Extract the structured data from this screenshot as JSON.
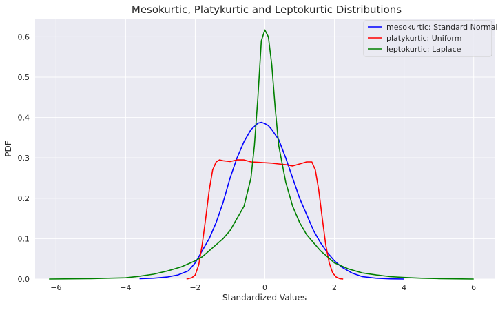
{
  "chart_data": {
    "type": "line",
    "title": "Mesokurtic, Platykurtic and Leptokurtic Distributions",
    "xlabel": "Standardized Values",
    "ylabel": "PDF",
    "xlim": [
      -6.6,
      6.6
    ],
    "ylim": [
      0,
      0.645
    ],
    "xticks": [
      -6,
      -4,
      -2,
      0,
      2,
      4,
      6
    ],
    "xtick_labels": [
      "−6",
      "−4",
      "−2",
      "0",
      "2",
      "4",
      "6"
    ],
    "yticks": [
      0.0,
      0.1,
      0.2,
      0.3,
      0.4,
      0.5,
      0.6
    ],
    "ytick_labels": [
      "0.0",
      "0.1",
      "0.2",
      "0.3",
      "0.4",
      "0.5",
      "0.6"
    ],
    "grid": true,
    "background": "#eaeaf2",
    "legend_position": "top-right",
    "series": [
      {
        "name": "mesokurtic: Standard Normal",
        "color": "#0000ff",
        "x": [
          -3.6,
          -3.2,
          -2.8,
          -2.5,
          -2.2,
          -2.0,
          -1.8,
          -1.6,
          -1.4,
          -1.2,
          -1.0,
          -0.8,
          -0.6,
          -0.4,
          -0.2,
          -0.1,
          0.0,
          0.1,
          0.2,
          0.4,
          0.6,
          0.8,
          1.0,
          1.2,
          1.4,
          1.6,
          1.8,
          2.0,
          2.2,
          2.5,
          2.8,
          3.2,
          3.6,
          4.0
        ],
        "y": [
          0.001,
          0.002,
          0.005,
          0.01,
          0.02,
          0.04,
          0.07,
          0.1,
          0.14,
          0.19,
          0.25,
          0.3,
          0.34,
          0.37,
          0.386,
          0.388,
          0.385,
          0.38,
          0.37,
          0.345,
          0.3,
          0.25,
          0.2,
          0.16,
          0.12,
          0.09,
          0.065,
          0.045,
          0.03,
          0.015,
          0.006,
          0.002,
          0.0005,
          0.0
        ]
      },
      {
        "name": "platykurtic: Uniform",
        "color": "#ff0000",
        "x": [
          -2.25,
          -2.1,
          -2.0,
          -1.9,
          -1.8,
          -1.7,
          -1.6,
          -1.5,
          -1.4,
          -1.3,
          -1.2,
          -1.0,
          -0.8,
          -0.6,
          -0.4,
          -0.2,
          0.0,
          0.2,
          0.4,
          0.6,
          0.8,
          1.0,
          1.2,
          1.35,
          1.45,
          1.55,
          1.65,
          1.75,
          1.85,
          1.95,
          2.05,
          2.15,
          2.25
        ],
        "y": [
          0.0,
          0.003,
          0.01,
          0.035,
          0.085,
          0.15,
          0.22,
          0.27,
          0.29,
          0.295,
          0.293,
          0.291,
          0.295,
          0.295,
          0.29,
          0.289,
          0.288,
          0.287,
          0.285,
          0.283,
          0.28,
          0.285,
          0.29,
          0.29,
          0.27,
          0.22,
          0.15,
          0.085,
          0.04,
          0.015,
          0.005,
          0.001,
          0.0
        ]
      },
      {
        "name": "leptokurtic: Laplace",
        "color": "#008000",
        "x": [
          -6.2,
          -5.0,
          -4.5,
          -4.0,
          -3.6,
          -3.2,
          -2.8,
          -2.4,
          -2.0,
          -1.8,
          -1.6,
          -1.4,
          -1.2,
          -1.0,
          -0.8,
          -0.6,
          -0.4,
          -0.3,
          -0.2,
          -0.1,
          0.0,
          0.1,
          0.2,
          0.3,
          0.4,
          0.6,
          0.8,
          1.0,
          1.2,
          1.4,
          1.6,
          1.8,
          2.0,
          2.4,
          2.8,
          3.2,
          3.6,
          4.0,
          4.5,
          5.0,
          5.5,
          6.0
        ],
        "y": [
          0.0,
          0.001,
          0.002,
          0.003,
          0.007,
          0.012,
          0.02,
          0.03,
          0.045,
          0.055,
          0.07,
          0.085,
          0.1,
          0.12,
          0.15,
          0.18,
          0.25,
          0.33,
          0.45,
          0.59,
          0.617,
          0.6,
          0.53,
          0.42,
          0.33,
          0.24,
          0.18,
          0.14,
          0.11,
          0.09,
          0.07,
          0.055,
          0.04,
          0.025,
          0.015,
          0.01,
          0.006,
          0.004,
          0.002,
          0.001,
          0.0005,
          0.0
        ]
      }
    ]
  }
}
